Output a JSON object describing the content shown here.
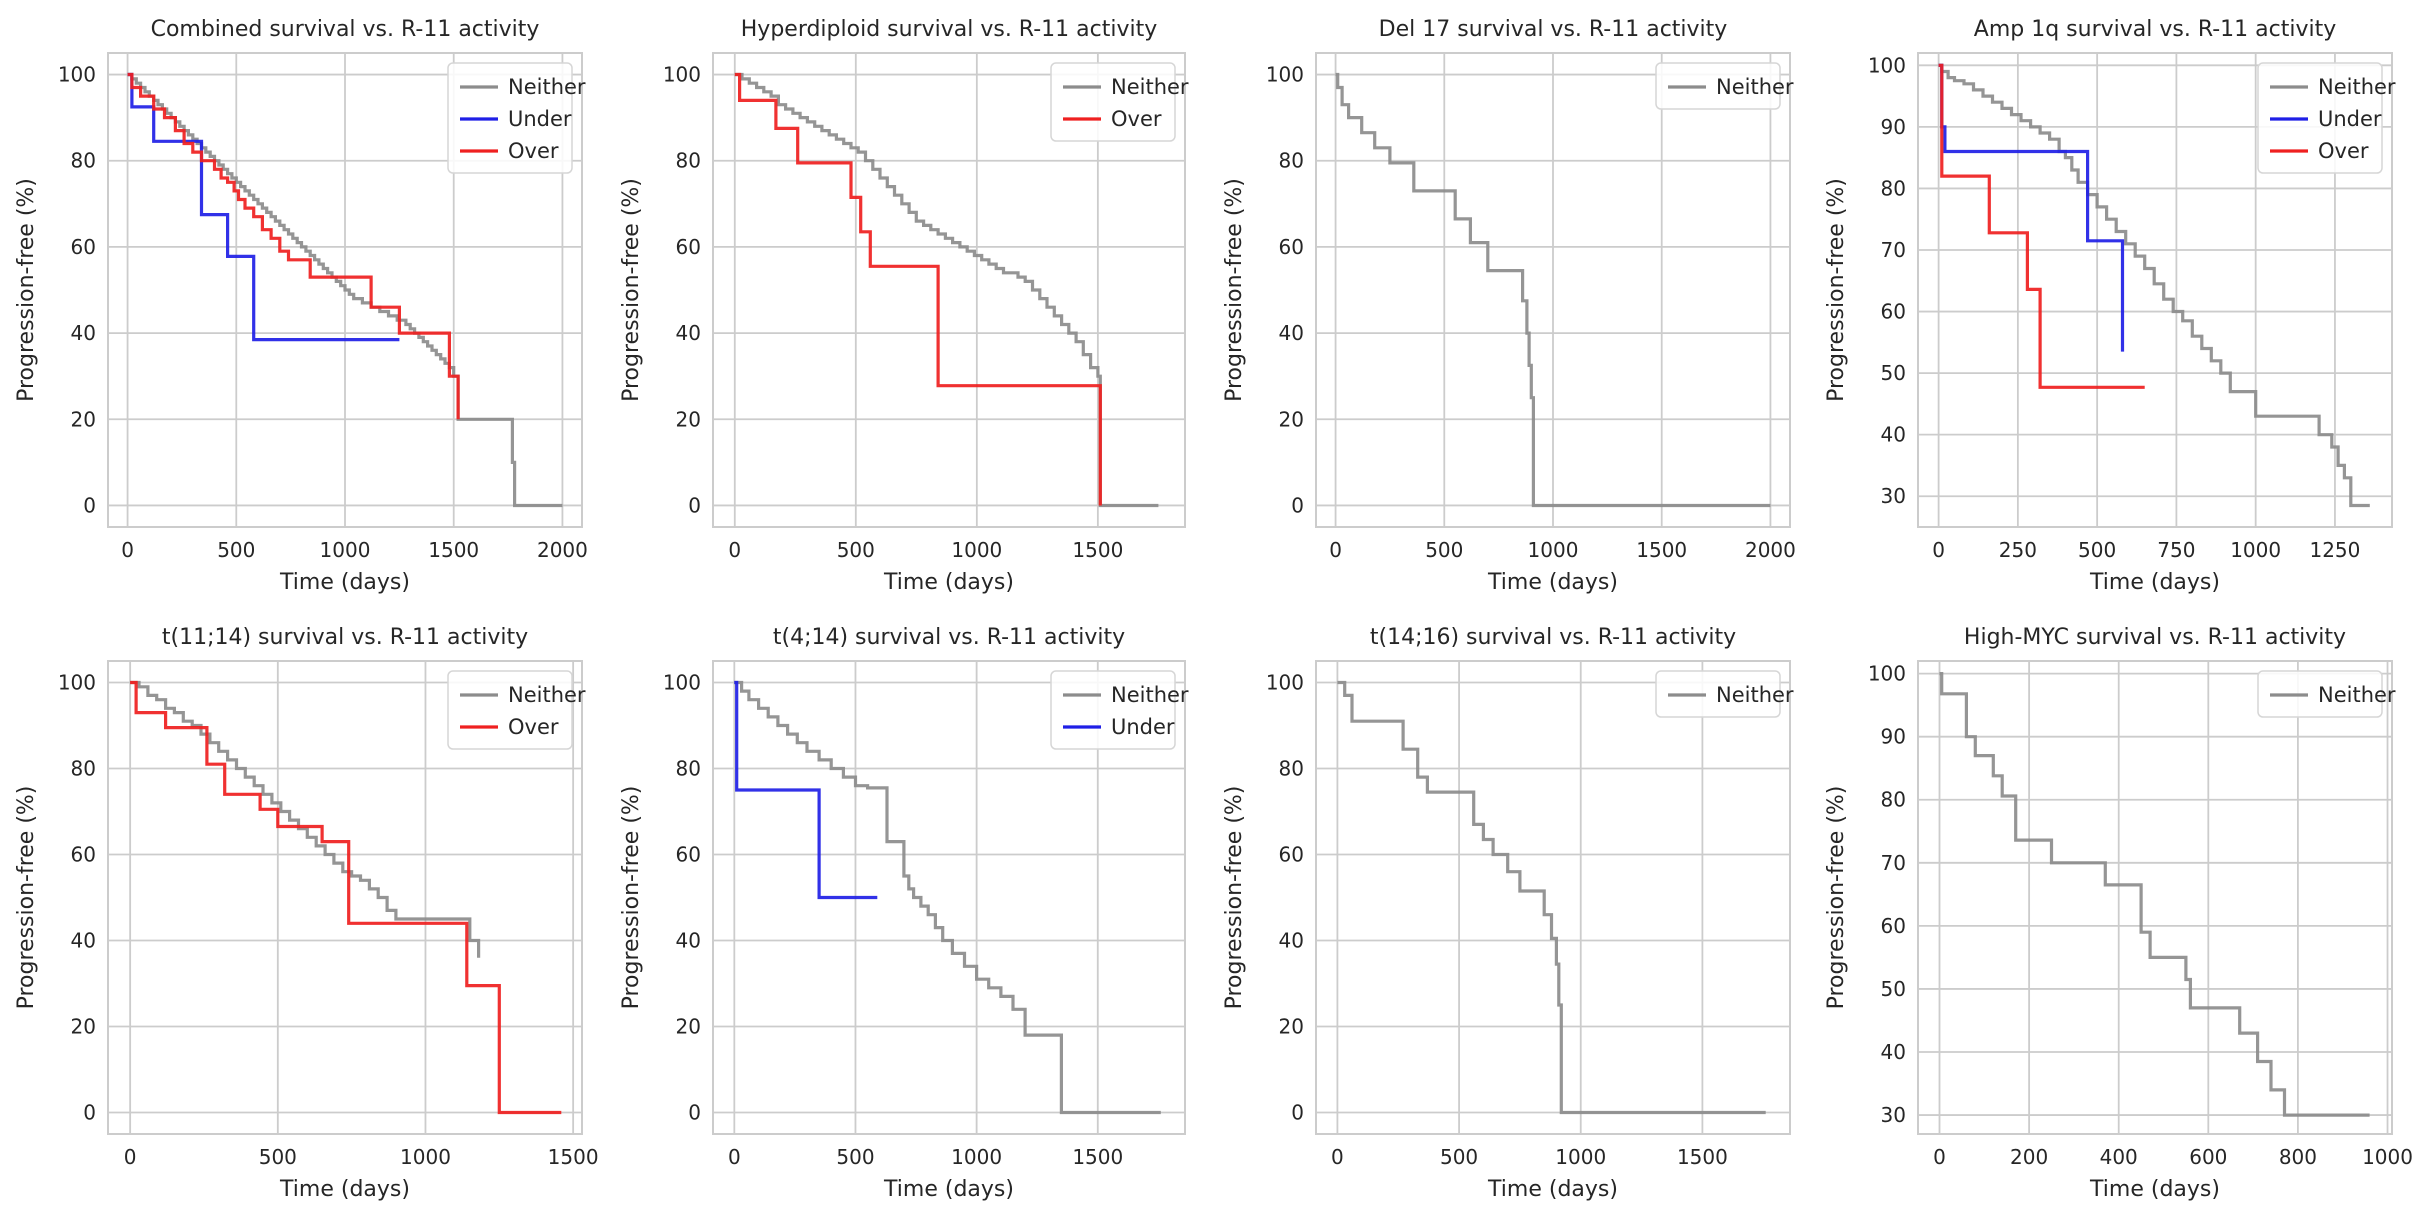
{
  "colors": {
    "Neither": "#8c8c8c",
    "Under": "#1f1fe6",
    "Over": "#ef2020"
  },
  "chart_data": [
    {
      "type": "line",
      "title": "Combined survival vs. R-11 activity",
      "xlabel": "Time (days)",
      "ylabel": "Progression-free (%)",
      "xlim": [
        -90,
        2090
      ],
      "ylim": [
        -5,
        105
      ],
      "xticks": [
        0,
        500,
        1000,
        1500,
        2000
      ],
      "yticks": [
        0,
        20,
        40,
        60,
        80,
        100
      ],
      "legend": [
        "Neither",
        "Under",
        "Over"
      ],
      "series": [
        {
          "name": "Neither",
          "x": [
            0,
            20,
            40,
            60,
            80,
            100,
            120,
            140,
            160,
            180,
            200,
            220,
            240,
            260,
            280,
            300,
            320,
            340,
            360,
            380,
            400,
            420,
            440,
            460,
            480,
            500,
            520,
            540,
            560,
            580,
            600,
            620,
            640,
            660,
            680,
            700,
            720,
            740,
            760,
            780,
            800,
            820,
            840,
            860,
            880,
            900,
            920,
            940,
            960,
            980,
            1000,
            1020,
            1040,
            1060,
            1080,
            1100,
            1120,
            1140,
            1160,
            1180,
            1200,
            1220,
            1240,
            1260,
            1280,
            1300,
            1320,
            1340,
            1360,
            1380,
            1400,
            1420,
            1440,
            1460,
            1480,
            1500,
            1520,
            1540,
            1560,
            1600,
            1700,
            1760,
            1770,
            1780,
            2000
          ],
          "y": [
            100,
            99,
            98,
            97,
            96,
            95,
            94,
            93,
            92,
            91,
            90,
            89,
            88,
            87,
            86,
            85,
            84,
            83,
            82,
            81,
            80,
            79,
            78,
            77,
            76,
            75,
            74,
            73,
            72,
            71,
            70,
            69,
            68,
            67,
            66,
            65,
            64,
            63,
            62,
            61,
            60,
            59,
            58,
            57,
            56,
            55,
            54,
            53,
            52,
            51,
            50,
            49,
            48,
            48,
            47,
            47,
            46,
            46,
            45,
            45,
            44,
            44,
            43,
            43,
            42,
            41,
            40,
            39,
            38,
            37,
            36,
            35,
            34,
            33,
            32,
            30,
            20,
            20,
            20,
            20,
            20,
            20,
            10,
            0,
            0
          ]
        },
        {
          "name": "Under",
          "x": [
            0,
            20,
            120,
            340,
            460,
            580,
            1250
          ],
          "y": [
            100,
            92.5,
            84.5,
            67.5,
            57.8,
            38.5,
            38.5
          ]
        },
        {
          "name": "Over",
          "x": [
            0,
            20,
            60,
            120,
            170,
            220,
            260,
            300,
            340,
            400,
            430,
            460,
            490,
            510,
            540,
            580,
            620,
            660,
            700,
            740,
            840,
            1120,
            1250,
            1480,
            1520
          ],
          "y": [
            100,
            97,
            95,
            92,
            90,
            87,
            84,
            82,
            80,
            78,
            76,
            75,
            73,
            71,
            69,
            67,
            64,
            62,
            59,
            57,
            53,
            46,
            40,
            30,
            20
          ]
        }
      ]
    },
    {
      "type": "line",
      "title": "Hyperdiploid survival vs. R-11 activity",
      "xlabel": "Time (days)",
      "ylabel": "Progression-free (%)",
      "xlim": [
        -90,
        1860
      ],
      "ylim": [
        -5,
        105
      ],
      "xticks": [
        0,
        500,
        1000,
        1500
      ],
      "yticks": [
        0,
        20,
        40,
        60,
        80,
        100
      ],
      "legend": [
        "Neither",
        "Over"
      ],
      "series": [
        {
          "name": "Neither",
          "x": [
            0,
            30,
            60,
            90,
            120,
            150,
            180,
            210,
            240,
            270,
            300,
            330,
            360,
            390,
            420,
            450,
            480,
            510,
            540,
            570,
            600,
            630,
            660,
            690,
            720,
            750,
            780,
            810,
            840,
            870,
            900,
            930,
            960,
            990,
            1020,
            1050,
            1080,
            1110,
            1140,
            1170,
            1200,
            1230,
            1260,
            1290,
            1320,
            1350,
            1380,
            1410,
            1440,
            1470,
            1500,
            1510,
            1750
          ],
          "y": [
            100,
            99,
            98,
            97,
            96,
            95,
            93,
            92,
            91,
            90,
            89,
            88,
            87,
            86,
            85,
            84,
            83,
            82,
            80,
            78,
            76,
            74,
            72,
            70,
            68,
            66,
            65,
            64,
            63,
            62,
            61,
            60,
            59,
            58,
            57,
            56,
            55,
            54,
            54,
            53,
            52,
            50,
            48,
            46,
            44,
            42,
            40,
            38,
            35,
            32,
            30,
            0,
            0
          ]
        },
        {
          "name": "Over",
          "x": [
            0,
            20,
            170,
            260,
            480,
            520,
            560,
            840,
            1500,
            1510
          ],
          "y": [
            100,
            94,
            87.5,
            79.5,
            71.5,
            63.5,
            55.5,
            27.8,
            27.8,
            0
          ]
        }
      ]
    },
    {
      "type": "line",
      "title": "Del 17 survival vs. R-11 activity",
      "xlabel": "Time (days)",
      "ylabel": "Progression-free (%)",
      "xlim": [
        -90,
        2090
      ],
      "ylim": [
        -5,
        105
      ],
      "xticks": [
        0,
        500,
        1000,
        1500,
        2000
      ],
      "yticks": [
        0,
        20,
        40,
        60,
        80,
        100
      ],
      "legend": [
        "Neither"
      ],
      "series": [
        {
          "name": "Neither",
          "x": [
            0,
            10,
            30,
            60,
            120,
            180,
            250,
            360,
            550,
            620,
            700,
            830,
            860,
            880,
            890,
            900,
            910,
            2000
          ],
          "y": [
            100,
            97,
            93,
            90,
            86.5,
            83,
            79.5,
            73,
            66.5,
            61,
            54.5,
            54.5,
            47.5,
            40,
            32.5,
            25,
            0,
            0
          ]
        }
      ]
    },
    {
      "type": "line",
      "title": "Amp 1q survival vs. R-11 activity",
      "xlabel": "Time (days)",
      "ylabel": "Progression-free (%)",
      "xlim": [
        -65,
        1430
      ],
      "ylim": [
        25,
        102
      ],
      "xticks": [
        0,
        250,
        500,
        750,
        1000,
        1250
      ],
      "yticks": [
        30,
        40,
        50,
        60,
        70,
        80,
        90,
        100
      ],
      "legend": [
        "Neither",
        "Under",
        "Over"
      ],
      "series": [
        {
          "name": "Neither",
          "x": [
            0,
            10,
            30,
            50,
            80,
            110,
            140,
            170,
            200,
            230,
            260,
            290,
            320,
            350,
            380,
            400,
            420,
            440,
            470,
            500,
            530,
            560,
            590,
            620,
            650,
            680,
            710,
            740,
            770,
            800,
            830,
            860,
            890,
            920,
            1000,
            1200,
            1240,
            1260,
            1280,
            1300,
            1360
          ],
          "y": [
            100,
            99,
            98,
            97.5,
            97,
            96,
            95,
            94,
            93,
            92,
            91,
            90,
            89,
            88,
            86,
            85,
            83,
            81,
            79,
            77,
            75,
            73,
            71,
            69,
            67,
            64.5,
            62,
            60,
            58.5,
            56,
            54,
            52,
            50,
            47,
            43,
            40,
            38,
            35,
            33,
            28.5,
            28.5
          ]
        },
        {
          "name": "Under",
          "x": [
            0,
            10,
            20,
            390,
            470,
            580
          ],
          "y": [
            100,
            90,
            86,
            86,
            71.5,
            53.5
          ]
        },
        {
          "name": "Over",
          "x": [
            0,
            10,
            160,
            280,
            320,
            650
          ],
          "y": [
            100,
            82,
            72.8,
            63.6,
            47.7,
            47.7
          ]
        }
      ]
    },
    {
      "type": "line",
      "title": "t(11;14) survival vs. R-11 activity",
      "xlabel": "Time (days)",
      "ylabel": "Progression-free (%)",
      "xlim": [
        -75,
        1530
      ],
      "ylim": [
        -5,
        105
      ],
      "xticks": [
        0,
        500,
        1000,
        1500
      ],
      "yticks": [
        0,
        20,
        40,
        60,
        80,
        100
      ],
      "legend": [
        "Neither",
        "Over"
      ],
      "series": [
        {
          "name": "Neither",
          "x": [
            0,
            30,
            60,
            90,
            120,
            150,
            180,
            210,
            240,
            270,
            300,
            330,
            360,
            390,
            420,
            450,
            480,
            510,
            540,
            570,
            600,
            630,
            660,
            690,
            720,
            750,
            780,
            810,
            840,
            870,
            900,
            1050,
            1150,
            1180
          ],
          "y": [
            100,
            99,
            97,
            96,
            94,
            93,
            91,
            90,
            88,
            86,
            84,
            82,
            80,
            78,
            76,
            74,
            72,
            70,
            68,
            66,
            64,
            62,
            60,
            58,
            56,
            55,
            54,
            52,
            50,
            47,
            45,
            45,
            40,
            36
          ]
        },
        {
          "name": "Over",
          "x": [
            0,
            20,
            120,
            260,
            320,
            440,
            500,
            650,
            740,
            1000,
            1140,
            1250,
            1460
          ],
          "y": [
            100,
            93,
            89.5,
            81,
            74,
            70.5,
            66.5,
            63,
            44,
            44,
            29.5,
            0,
            0
          ]
        }
      ]
    },
    {
      "type": "line",
      "title": "t(4;14) survival vs. R-11 activity",
      "xlabel": "Time (days)",
      "ylabel": "Progression-free (%)",
      "xlim": [
        -88,
        1860
      ],
      "ylim": [
        -5,
        105
      ],
      "xticks": [
        0,
        500,
        1000,
        1500
      ],
      "yticks": [
        0,
        20,
        40,
        60,
        80,
        100
      ],
      "legend": [
        "Neither",
        "Under"
      ],
      "series": [
        {
          "name": "Neither",
          "x": [
            0,
            30,
            60,
            100,
            140,
            180,
            220,
            260,
            300,
            350,
            400,
            450,
            500,
            550,
            600,
            630,
            680,
            700,
            720,
            740,
            770,
            800,
            830,
            860,
            900,
            950,
            1000,
            1050,
            1100,
            1150,
            1200,
            1350,
            1760
          ],
          "y": [
            100,
            98,
            96,
            94,
            92,
            90,
            88,
            86,
            84,
            82,
            80,
            78,
            76,
            75.5,
            75.5,
            63,
            63,
            55,
            52,
            50,
            48,
            46,
            43,
            40,
            37,
            34,
            31,
            29,
            27,
            24,
            18,
            0,
            0
          ]
        },
        {
          "name": "Under",
          "x": [
            0,
            10,
            350,
            590
          ],
          "y": [
            100,
            75,
            50,
            50
          ]
        }
      ]
    },
    {
      "type": "line",
      "title": "t(14;16) survival vs. R-11 activity",
      "xlabel": "Time (days)",
      "ylabel": "Progression-free (%)",
      "xlim": [
        -88,
        1860
      ],
      "ylim": [
        -5,
        105
      ],
      "xticks": [
        0,
        500,
        1000,
        1500
      ],
      "yticks": [
        0,
        20,
        40,
        60,
        80,
        100
      ],
      "legend": [
        "Neither"
      ],
      "series": [
        {
          "name": "Neither",
          "x": [
            0,
            30,
            60,
            270,
            330,
            370,
            560,
            600,
            640,
            700,
            750,
            850,
            880,
            900,
            910,
            920,
            1760
          ],
          "y": [
            100,
            97,
            91,
            84.5,
            78,
            74.5,
            67,
            63.5,
            60,
            56,
            51.5,
            46,
            40.5,
            34.5,
            25,
            0,
            0
          ]
        }
      ]
    },
    {
      "type": "line",
      "title": "High-MYC survival vs. R-11 activity",
      "xlabel": "Time (days)",
      "ylabel": "Progression-free (%)",
      "xlim": [
        -48,
        1010
      ],
      "ylim": [
        27,
        102
      ],
      "xticks": [
        0,
        200,
        400,
        600,
        800,
        1000
      ],
      "yticks": [
        30,
        40,
        50,
        60,
        70,
        80,
        90,
        100
      ],
      "legend": [
        "Neither"
      ],
      "series": [
        {
          "name": "Neither",
          "x": [
            0,
            5,
            60,
            80,
            120,
            140,
            170,
            250,
            370,
            450,
            470,
            490,
            550,
            560,
            670,
            710,
            740,
            770,
            960
          ],
          "y": [
            100,
            96.8,
            90,
            87,
            83.8,
            80.6,
            73.6,
            70,
            66.5,
            59,
            55,
            55,
            51.5,
            47,
            43,
            38.5,
            34,
            30,
            30
          ]
        }
      ]
    }
  ]
}
